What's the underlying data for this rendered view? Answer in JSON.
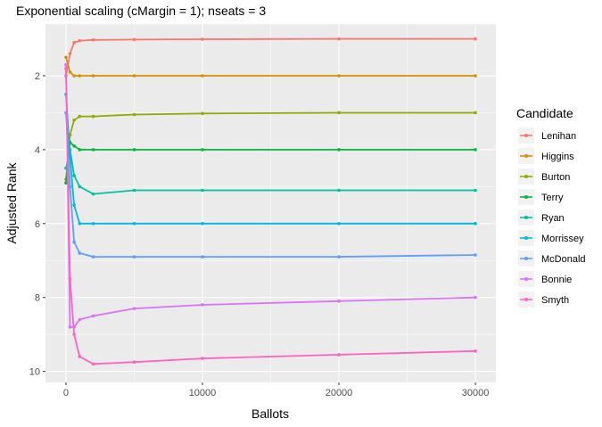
{
  "chart_data": {
    "type": "line",
    "title": "Exponential scaling (cMargin = 1); nseats = 3",
    "xlabel": "Ballots",
    "ylabel": "Adjusted Rank",
    "xlim": [
      -1500,
      31500
    ],
    "ylim": [
      10.3,
      0.6
    ],
    "y_reversed": true,
    "x_ticks": [
      0,
      10000,
      20000,
      30000
    ],
    "x_tick_labels": [
      "0",
      "10000",
      "20000",
      "30000"
    ],
    "y_ticks": [
      2,
      4,
      6,
      8,
      10
    ],
    "y_tick_labels": [
      "2",
      "4",
      "6",
      "8",
      "10"
    ],
    "grid": true,
    "legend_title": "Candidate",
    "legend_position": "right",
    "series": [
      {
        "name": "Lenihan",
        "color": "#F8766D",
        "x": [
          0,
          300,
          600,
          1000,
          2000,
          5000,
          10000,
          20000,
          30000
        ],
        "y": [
          2.0,
          1.4,
          1.1,
          1.05,
          1.03,
          1.02,
          1.01,
          1.0,
          1.0
        ]
      },
      {
        "name": "Higgins",
        "color": "#D39200",
        "x": [
          0,
          300,
          600,
          1000,
          2000,
          5000,
          10000,
          20000,
          30000
        ],
        "y": [
          1.5,
          1.9,
          2.0,
          2.0,
          2.0,
          2.0,
          2.0,
          2.0,
          2.0
        ]
      },
      {
        "name": "Burton",
        "color": "#93AA00",
        "x": [
          0,
          300,
          600,
          1000,
          2000,
          5000,
          10000,
          20000,
          30000
        ],
        "y": [
          4.8,
          3.6,
          3.2,
          3.1,
          3.1,
          3.05,
          3.02,
          3.0,
          3.0
        ]
      },
      {
        "name": "Terry",
        "color": "#00BA38",
        "x": [
          0,
          300,
          600,
          1000,
          2000,
          5000,
          10000,
          20000,
          30000
        ],
        "y": [
          4.9,
          3.8,
          3.9,
          4.0,
          4.0,
          4.0,
          4.0,
          4.0,
          4.0
        ]
      },
      {
        "name": "Ryan",
        "color": "#00C19F",
        "x": [
          0,
          300,
          600,
          1000,
          2000,
          5000,
          10000,
          20000,
          30000
        ],
        "y": [
          4.5,
          4.0,
          4.7,
          5.0,
          5.2,
          5.1,
          5.1,
          5.1,
          5.1
        ]
      },
      {
        "name": "Morrissey",
        "color": "#00B9E3",
        "x": [
          0,
          300,
          600,
          1000,
          2000,
          5000,
          10000,
          20000,
          30000
        ],
        "y": [
          2.5,
          4.2,
          5.5,
          6.0,
          6.0,
          6.0,
          6.0,
          6.0,
          6.0
        ]
      },
      {
        "name": "McDonald",
        "color": "#619CFF",
        "x": [
          0,
          300,
          600,
          1000,
          2000,
          5000,
          10000,
          20000,
          30000
        ],
        "y": [
          3.0,
          5.0,
          6.5,
          6.8,
          6.9,
          6.9,
          6.9,
          6.9,
          6.85
        ]
      },
      {
        "name": "Bonnie",
        "color": "#DB72FB",
        "x": [
          0,
          300,
          600,
          1000,
          2000,
          5000,
          10000,
          20000,
          30000
        ],
        "y": [
          1.7,
          8.8,
          8.8,
          8.6,
          8.5,
          8.3,
          8.2,
          8.1,
          8.0
        ]
      },
      {
        "name": "Smyth",
        "color": "#FF61C3",
        "x": [
          0,
          300,
          600,
          1000,
          2000,
          5000,
          10000,
          20000,
          30000
        ],
        "y": [
          1.8,
          7.5,
          9.0,
          9.6,
          9.8,
          9.75,
          9.65,
          9.55,
          9.45
        ]
      }
    ]
  }
}
